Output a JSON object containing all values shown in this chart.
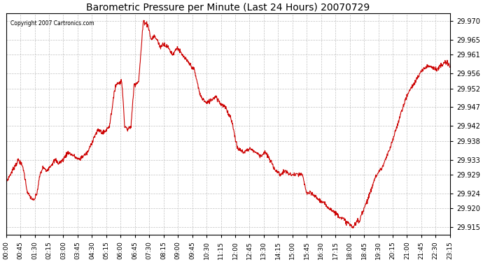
{
  "title": "Barometric Pressure per Minute (Last 24 Hours) 20070729",
  "copyright_text": "Copyright 2007 Cartronics.com",
  "line_color": "#cc0000",
  "background_color": "#ffffff",
  "grid_color": "#bbbbbb",
  "y_ticks": [
    29.915,
    29.92,
    29.924,
    29.929,
    29.933,
    29.938,
    29.942,
    29.947,
    29.952,
    29.956,
    29.961,
    29.965,
    29.97
  ],
  "ylim": [
    29.913,
    29.972
  ],
  "x_tick_labels": [
    "00:00",
    "00:45",
    "01:30",
    "02:15",
    "03:00",
    "03:45",
    "04:30",
    "05:15",
    "06:00",
    "06:45",
    "07:30",
    "08:15",
    "09:00",
    "09:45",
    "10:30",
    "11:15",
    "12:00",
    "12:45",
    "13:30",
    "14:15",
    "15:00",
    "15:45",
    "16:30",
    "17:15",
    "18:00",
    "18:45",
    "19:30",
    "20:15",
    "21:00",
    "21:45",
    "22:30",
    "23:15"
  ],
  "keypoints": [
    [
      0,
      29.927
    ],
    [
      20,
      29.93
    ],
    [
      40,
      29.933
    ],
    [
      55,
      29.931
    ],
    [
      70,
      29.924
    ],
    [
      90,
      29.922
    ],
    [
      100,
      29.924
    ],
    [
      110,
      29.929
    ],
    [
      120,
      29.931
    ],
    [
      130,
      29.93
    ],
    [
      140,
      29.931
    ],
    [
      150,
      29.932
    ],
    [
      160,
      29.933
    ],
    [
      170,
      29.932
    ],
    [
      185,
      29.933
    ],
    [
      200,
      29.935
    ],
    [
      220,
      29.934
    ],
    [
      235,
      29.933
    ],
    [
      250,
      29.934
    ],
    [
      265,
      29.935
    ],
    [
      275,
      29.937
    ],
    [
      285,
      29.939
    ],
    [
      300,
      29.941
    ],
    [
      315,
      29.94
    ],
    [
      325,
      29.941
    ],
    [
      335,
      29.942
    ],
    [
      355,
      29.953
    ],
    [
      375,
      29.954
    ],
    [
      385,
      29.942
    ],
    [
      395,
      29.941
    ],
    [
      405,
      29.942
    ],
    [
      415,
      29.953
    ],
    [
      430,
      29.954
    ],
    [
      445,
      29.97
    ],
    [
      460,
      29.969
    ],
    [
      470,
      29.965
    ],
    [
      480,
      29.966
    ],
    [
      490,
      29.965
    ],
    [
      500,
      29.963
    ],
    [
      510,
      29.964
    ],
    [
      525,
      29.963
    ],
    [
      540,
      29.961
    ],
    [
      555,
      29.963
    ],
    [
      570,
      29.961
    ],
    [
      590,
      29.959
    ],
    [
      610,
      29.957
    ],
    [
      630,
      29.95
    ],
    [
      650,
      29.948
    ],
    [
      665,
      29.949
    ],
    [
      680,
      29.95
    ],
    [
      695,
      29.948
    ],
    [
      710,
      29.947
    ],
    [
      730,
      29.944
    ],
    [
      750,
      29.936
    ],
    [
      770,
      29.935
    ],
    [
      790,
      29.936
    ],
    [
      810,
      29.935
    ],
    [
      825,
      29.934
    ],
    [
      840,
      29.935
    ],
    [
      855,
      29.933
    ],
    [
      875,
      29.93
    ],
    [
      890,
      29.929
    ],
    [
      905,
      29.93
    ],
    [
      920,
      29.929
    ],
    [
      940,
      29.929
    ],
    [
      960,
      29.929
    ],
    [
      975,
      29.924
    ],
    [
      990,
      29.924
    ],
    [
      1005,
      29.923
    ],
    [
      1020,
      29.922
    ],
    [
      1035,
      29.921
    ],
    [
      1050,
      29.92
    ],
    [
      1065,
      29.919
    ],
    [
      1080,
      29.918
    ],
    [
      1095,
      29.917
    ],
    [
      1110,
      29.916
    ],
    [
      1125,
      29.915
    ],
    [
      1135,
      29.916
    ],
    [
      1140,
      29.917
    ],
    [
      1145,
      29.916
    ],
    [
      1150,
      29.918
    ],
    [
      1165,
      29.921
    ],
    [
      1180,
      29.924
    ],
    [
      1195,
      29.928
    ],
    [
      1210,
      29.93
    ],
    [
      1220,
      29.931
    ],
    [
      1230,
      29.933
    ],
    [
      1245,
      29.936
    ],
    [
      1260,
      29.94
    ],
    [
      1275,
      29.944
    ],
    [
      1290,
      29.948
    ],
    [
      1305,
      29.951
    ],
    [
      1320,
      29.953
    ],
    [
      1335,
      29.955
    ],
    [
      1350,
      29.957
    ],
    [
      1365,
      29.958
    ],
    [
      1380,
      29.958
    ],
    [
      1395,
      29.957
    ],
    [
      1410,
      29.958
    ],
    [
      1425,
      29.959
    ],
    [
      1439,
      29.958
    ]
  ]
}
